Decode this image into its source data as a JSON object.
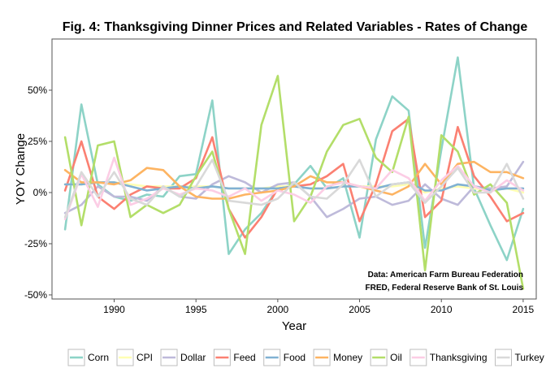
{
  "chart_data": {
    "type": "line",
    "title": "Fig. 4: Thanksgiving Dinner Prices and Related Variables - Rates of Change",
    "xlabel": "Year",
    "ylabel": "YOY Change",
    "xlim": [
      1986.2,
      2015.8
    ],
    "ylim": [
      -52,
      75
    ],
    "x_ticks": [
      1990,
      1995,
      2000,
      2005,
      2010,
      2015
    ],
    "x_tick_labels": [
      "1990",
      "1995",
      "2000",
      "2005",
      "2010",
      "2015"
    ],
    "y_ticks": [
      -50,
      -25,
      0,
      25,
      50
    ],
    "y_tick_labels": [
      "-50%",
      "-25%",
      "0%",
      "25%",
      "50%"
    ],
    "grid": false,
    "legend_position": "bottom",
    "annotations": [
      "Data: American Farm Bureau Federation",
      "FRED, Federal Reserve Bank of St. Louis"
    ],
    "x": [
      1987,
      1988,
      1989,
      1990,
      1991,
      1992,
      1993,
      1994,
      1995,
      1996,
      1997,
      1998,
      1999,
      2000,
      2001,
      2002,
      2003,
      2004,
      2005,
      2006,
      2007,
      2008,
      2009,
      2010,
      2011,
      2012,
      2013,
      2014,
      2015
    ],
    "series": [
      {
        "name": "Corn",
        "color": "#8dd3c7",
        "values": [
          -18,
          43,
          4,
          -2,
          -4,
          -1,
          -2,
          8,
          9,
          45,
          -30,
          -18,
          -10,
          2,
          4,
          13,
          2,
          7,
          -22,
          26,
          47,
          40,
          -27,
          21,
          66,
          2,
          -16,
          -33,
          -8
        ]
      },
      {
        "name": "CPI",
        "color": "#ffffb3",
        "values": [
          4,
          4,
          5,
          5,
          4,
          3,
          3,
          3,
          3,
          3,
          2,
          2,
          2,
          3,
          3,
          2,
          2,
          3,
          3,
          3,
          3,
          4,
          0,
          2,
          3,
          2,
          1,
          2,
          0
        ]
      },
      {
        "name": "Dollar",
        "color": "#bebada",
        "values": [
          -10,
          -6,
          3,
          -2,
          -2,
          -4,
          3,
          -2,
          -3,
          4,
          8,
          5,
          0,
          4,
          5,
          -2,
          -12,
          -8,
          -3,
          -2,
          -6,
          -4,
          4,
          -3,
          -6,
          3,
          2,
          3,
          15
        ]
      },
      {
        "name": "Feed",
        "color": "#fb8072",
        "values": [
          1,
          25,
          -2,
          -8,
          -1,
          3,
          2,
          2,
          7,
          27,
          -8,
          -22,
          -12,
          2,
          3,
          4,
          8,
          14,
          -14,
          4,
          30,
          36,
          -12,
          -4,
          32,
          8,
          -2,
          -14,
          -10
        ]
      },
      {
        "name": "Food",
        "color": "#80b1d3",
        "values": [
          4,
          4,
          5,
          5,
          3,
          1,
          2,
          3,
          2,
          3,
          2,
          2,
          2,
          2,
          3,
          2,
          2,
          3,
          3,
          2,
          4,
          5,
          1,
          1,
          4,
          3,
          1,
          2,
          2
        ]
      },
      {
        "name": "Money",
        "color": "#fdb462",
        "values": [
          11,
          5,
          5,
          4,
          6,
          12,
          11,
          3,
          -2,
          -3,
          -3,
          -1,
          0,
          1,
          3,
          8,
          5,
          5,
          3,
          1,
          -1,
          3,
          14,
          4,
          14,
          15,
          10,
          10,
          7
        ]
      },
      {
        "name": "Oil",
        "color": "#b3de69",
        "values": [
          27,
          -16,
          23,
          25,
          -12,
          -6,
          -10,
          -6,
          8,
          20,
          -8,
          -30,
          33,
          57,
          -14,
          -2,
          20,
          33,
          36,
          17,
          10,
          37,
          -38,
          28,
          20,
          -1,
          4,
          -5,
          -47
        ]
      },
      {
        "name": "Thanksgiving",
        "color": "#fccde5",
        "values": [
          -13,
          9,
          -7,
          17,
          -6,
          -3,
          2,
          -1,
          2,
          1,
          -2,
          2,
          -4,
          1,
          -1,
          -5,
          3,
          5,
          3,
          2,
          11,
          7,
          -4,
          6,
          13,
          3,
          0,
          6,
          1
        ]
      },
      {
        "name": "Turkey",
        "color": "#d9d9d9",
        "values": [
          -12,
          10,
          -2,
          10,
          -3,
          -6,
          3,
          -2,
          3,
          16,
          -4,
          -5,
          -6,
          -3,
          5,
          -2,
          -3,
          4,
          16,
          -2,
          4,
          5,
          -5,
          3,
          12,
          0,
          0,
          14,
          -3
        ]
      }
    ]
  }
}
